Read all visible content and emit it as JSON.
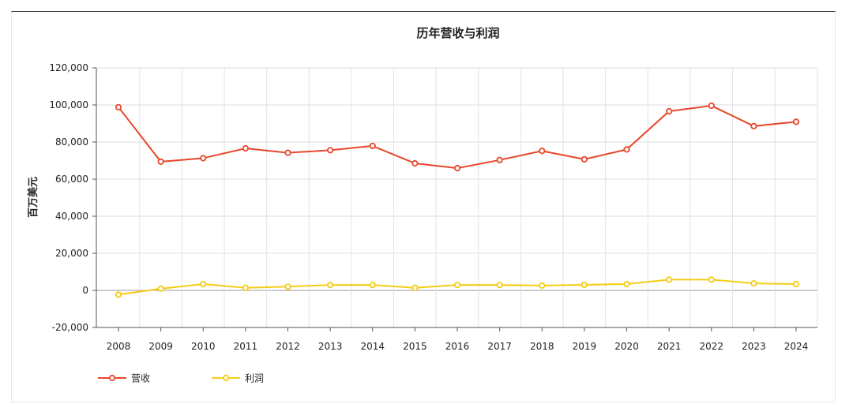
{
  "chart_data": {
    "type": "line",
    "title": "历年营收与利润",
    "ylabel": "百万美元",
    "xlabel": "",
    "categories": [
      "2008",
      "2009",
      "2010",
      "2011",
      "2012",
      "2013",
      "2014",
      "2015",
      "2016",
      "2017",
      "2018",
      "2019",
      "2020",
      "2021",
      "2022",
      "2023",
      "2024"
    ],
    "ylim": [
      -20000,
      120000
    ],
    "yticks": [
      -20000,
      0,
      20000,
      40000,
      60000,
      80000,
      100000,
      120000
    ],
    "ytick_labels": [
      "-20,000",
      "0",
      "20,000",
      "40,000",
      "60,000",
      "80,000",
      "100,000",
      "120,000"
    ],
    "grid": true,
    "legend_position": "bottom-left",
    "series": [
      {
        "name": "营收",
        "color": "#e8472b",
        "values": [
          98800,
          69400,
          71300,
          76600,
          74200,
          75600,
          77900,
          68500,
          65900,
          70300,
          75200,
          70700,
          76000,
          96600,
          99600,
          88600,
          90900
        ]
      },
      {
        "name": "利润",
        "color": "#f5cc14",
        "values": [
          -2300,
          900,
          3400,
          1400,
          2000,
          2900,
          2900,
          1400,
          2900,
          2900,
          2600,
          3000,
          3400,
          5800,
          5800,
          3800,
          3400
        ]
      }
    ]
  }
}
